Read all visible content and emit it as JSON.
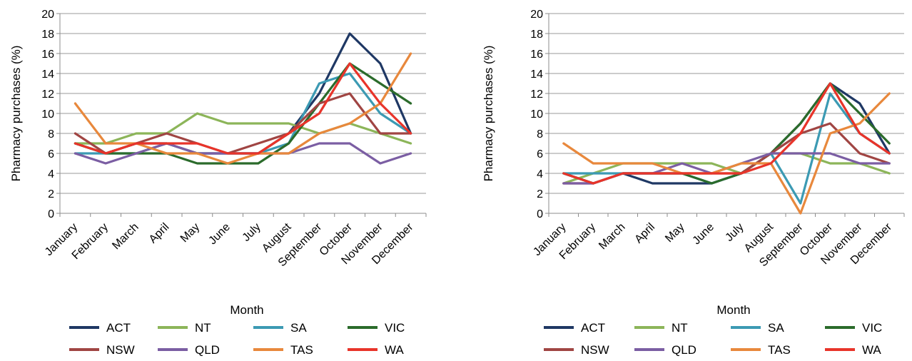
{
  "chart_data": [
    {
      "type": "line",
      "categories": [
        "January",
        "February",
        "March",
        "April",
        "May",
        "June",
        "July",
        "August",
        "September",
        "October",
        "November",
        "December"
      ],
      "ylabel": "Pharmacy purchases (%)",
      "xlabel": "Month",
      "ylim": [
        0,
        20
      ],
      "yticks": [
        0,
        2,
        4,
        6,
        8,
        10,
        12,
        14,
        16,
        18,
        20
      ],
      "grid": true,
      "legend_position": "bottom",
      "series": [
        {
          "name": "ACT",
          "color": "#1f3864",
          "values": [
            7,
            6,
            7,
            7,
            6,
            6,
            6,
            8,
            12,
            18,
            15,
            8
          ]
        },
        {
          "name": "NT",
          "color": "#8cb559",
          "values": [
            7,
            7,
            8,
            8,
            10,
            9,
            9,
            9,
            8,
            9,
            8,
            7
          ]
        },
        {
          "name": "SA",
          "color": "#3c9ab3",
          "values": [
            6,
            6,
            6,
            7,
            6,
            6,
            6,
            7,
            13,
            14,
            10,
            8
          ]
        },
        {
          "name": "VIC",
          "color": "#2b6b2b",
          "values": [
            7,
            6,
            6,
            6,
            5,
            5,
            5,
            7,
            11,
            15,
            13,
            11
          ]
        },
        {
          "name": "NSW",
          "color": "#a04543",
          "values": [
            8,
            6,
            7,
            8,
            7,
            6,
            7,
            8,
            11,
            12,
            8,
            8
          ]
        },
        {
          "name": "QLD",
          "color": "#7b5ea3",
          "values": [
            6,
            5,
            6,
            7,
            6,
            6,
            6,
            6,
            7,
            7,
            5,
            6
          ]
        },
        {
          "name": "TAS",
          "color": "#e8883c",
          "values": [
            11,
            7,
            7,
            6,
            6,
            5,
            6,
            6,
            8,
            9,
            11,
            16
          ]
        },
        {
          "name": "WA",
          "color": "#e8342a",
          "values": [
            7,
            6,
            7,
            7,
            7,
            6,
            6,
            8,
            10,
            15,
            11,
            8
          ]
        }
      ]
    },
    {
      "type": "line",
      "categories": [
        "January",
        "February",
        "March",
        "April",
        "May",
        "June",
        "July",
        "August",
        "September",
        "October",
        "November",
        "December"
      ],
      "ylabel": "Pharmacy purchases (%)",
      "xlabel": "Month",
      "ylim": [
        0,
        20
      ],
      "yticks": [
        0,
        2,
        4,
        6,
        8,
        10,
        12,
        14,
        16,
        18,
        20
      ],
      "grid": true,
      "legend_position": "bottom",
      "series": [
        {
          "name": "ACT",
          "color": "#1f3864",
          "values": [
            4,
            3,
            4,
            3,
            3,
            3,
            4,
            6,
            9,
            13,
            11,
            6
          ]
        },
        {
          "name": "NT",
          "color": "#8cb559",
          "values": [
            3,
            4,
            5,
            5,
            5,
            5,
            4,
            6,
            6,
            5,
            5,
            4
          ]
        },
        {
          "name": "SA",
          "color": "#3c9ab3",
          "values": [
            4,
            4,
            4,
            4,
            4,
            3,
            4,
            6,
            1,
            12,
            8,
            6
          ]
        },
        {
          "name": "VIC",
          "color": "#2b6b2b",
          "values": [
            4,
            3,
            4,
            4,
            4,
            3,
            4,
            6,
            9,
            13,
            10,
            7
          ]
        },
        {
          "name": "NSW",
          "color": "#a04543",
          "values": [
            3,
            3,
            4,
            4,
            4,
            4,
            4,
            6,
            8,
            9,
            6,
            5
          ]
        },
        {
          "name": "QLD",
          "color": "#7b5ea3",
          "values": [
            3,
            3,
            4,
            4,
            5,
            4,
            5,
            6,
            6,
            6,
            5,
            5
          ]
        },
        {
          "name": "TAS",
          "color": "#e8883c",
          "values": [
            7,
            5,
            5,
            5,
            4,
            4,
            5,
            5,
            0,
            8,
            9,
            12
          ]
        },
        {
          "name": "WA",
          "color": "#e8342a",
          "values": [
            4,
            3,
            4,
            4,
            4,
            4,
            4,
            5,
            8,
            13,
            8,
            6
          ]
        }
      ]
    }
  ]
}
